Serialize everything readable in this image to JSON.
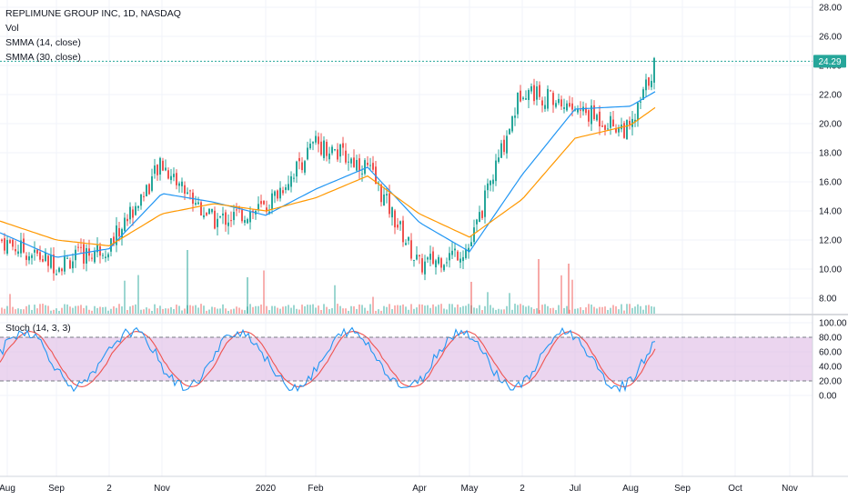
{
  "legend": {
    "title": "REPLIMUNE GROUP INC, 1D, NASDAQ",
    "volume": "Vol",
    "smma14": "SMMA (14, close)",
    "smma30": "SMMA (30, close)",
    "stoch": "Stoch (14, 3, 3)"
  },
  "price_axis": {
    "ticks": [
      "28.00",
      "26.00",
      "24.00",
      "22.00",
      "20.00",
      "18.00",
      "16.00",
      "14.00",
      "12.00",
      "10.00",
      "8.00"
    ],
    "last_price": "24.29"
  },
  "stoch_axis": {
    "ticks": [
      "100.00",
      "80.00",
      "60.00",
      "40.00",
      "20.00",
      "0.00"
    ]
  },
  "time_axis": {
    "labels": [
      "Aug",
      "Sep",
      "2",
      "Nov",
      "2020",
      "Feb",
      "Apr",
      "May",
      "2",
      "Jul",
      "Aug",
      "Sep",
      "Oct",
      "Nov"
    ]
  },
  "colors": {
    "up": "#26a69a",
    "down": "#ef5350",
    "smma14": "#2196f3",
    "smma30": "#ff9800",
    "stoch_k": "#2196f3",
    "stoch_d": "#ef5350",
    "stoch_band": "#e1bee7",
    "last_line": "#26a69a"
  },
  "chart_data": [
    {
      "type": "candlestick",
      "title": "REPLIMUNE GROUP INC, 1D, NASDAQ",
      "ylim": [
        7,
        29
      ],
      "last_price": 24.29,
      "x": [
        "2019-08",
        "2019-09",
        "2019-10",
        "2019-11",
        "2019-12",
        "2020-01",
        "2020-02",
        "2020-03",
        "2020-04",
        "2020-05",
        "2020-06",
        "2020-07",
        "2020-08"
      ],
      "series": [
        {
          "name": "Close (approx.)",
          "values": [
            10.2,
            11.5,
            17.2,
            13.3,
            14.2,
            18.6,
            17.0,
            10.2,
            11.5,
            19.5,
            22.5,
            21.0,
            24.29
          ]
        },
        {
          "name": "SMMA (14, close)",
          "values": [
            11.0,
            11.3,
            15.0,
            14.5,
            13.9,
            15.5,
            17.0,
            13.0,
            11.5,
            16.5,
            21.0,
            21.5,
            22.2
          ]
        },
        {
          "name": "SMMA (30, close)",
          "values": [
            12.0,
            11.8,
            14.0,
            14.3,
            14.0,
            14.8,
            16.3,
            13.6,
            12.5,
            15.0,
            19.0,
            20.0,
            21.1
          ]
        }
      ]
    },
    {
      "type": "line",
      "title": "Stoch (14, 3, 3)",
      "ylim": [
        0,
        100
      ],
      "bands": [
        20,
        80
      ],
      "x": [
        "2019-08",
        "2019-09",
        "2019-10",
        "2019-11",
        "2019-12",
        "2020-01",
        "2020-02",
        "2020-03",
        "2020-04",
        "2020-05",
        "2020-06",
        "2020-07",
        "2020-08"
      ],
      "series": [
        {
          "name": "%K",
          "values": [
            30,
            12,
            85,
            35,
            60,
            88,
            50,
            10,
            40,
            75,
            80,
            10,
            75
          ]
        },
        {
          "name": "%D",
          "values": [
            32,
            14,
            82,
            38,
            58,
            86,
            52,
            12,
            38,
            72,
            78,
            12,
            80
          ]
        }
      ]
    }
  ]
}
